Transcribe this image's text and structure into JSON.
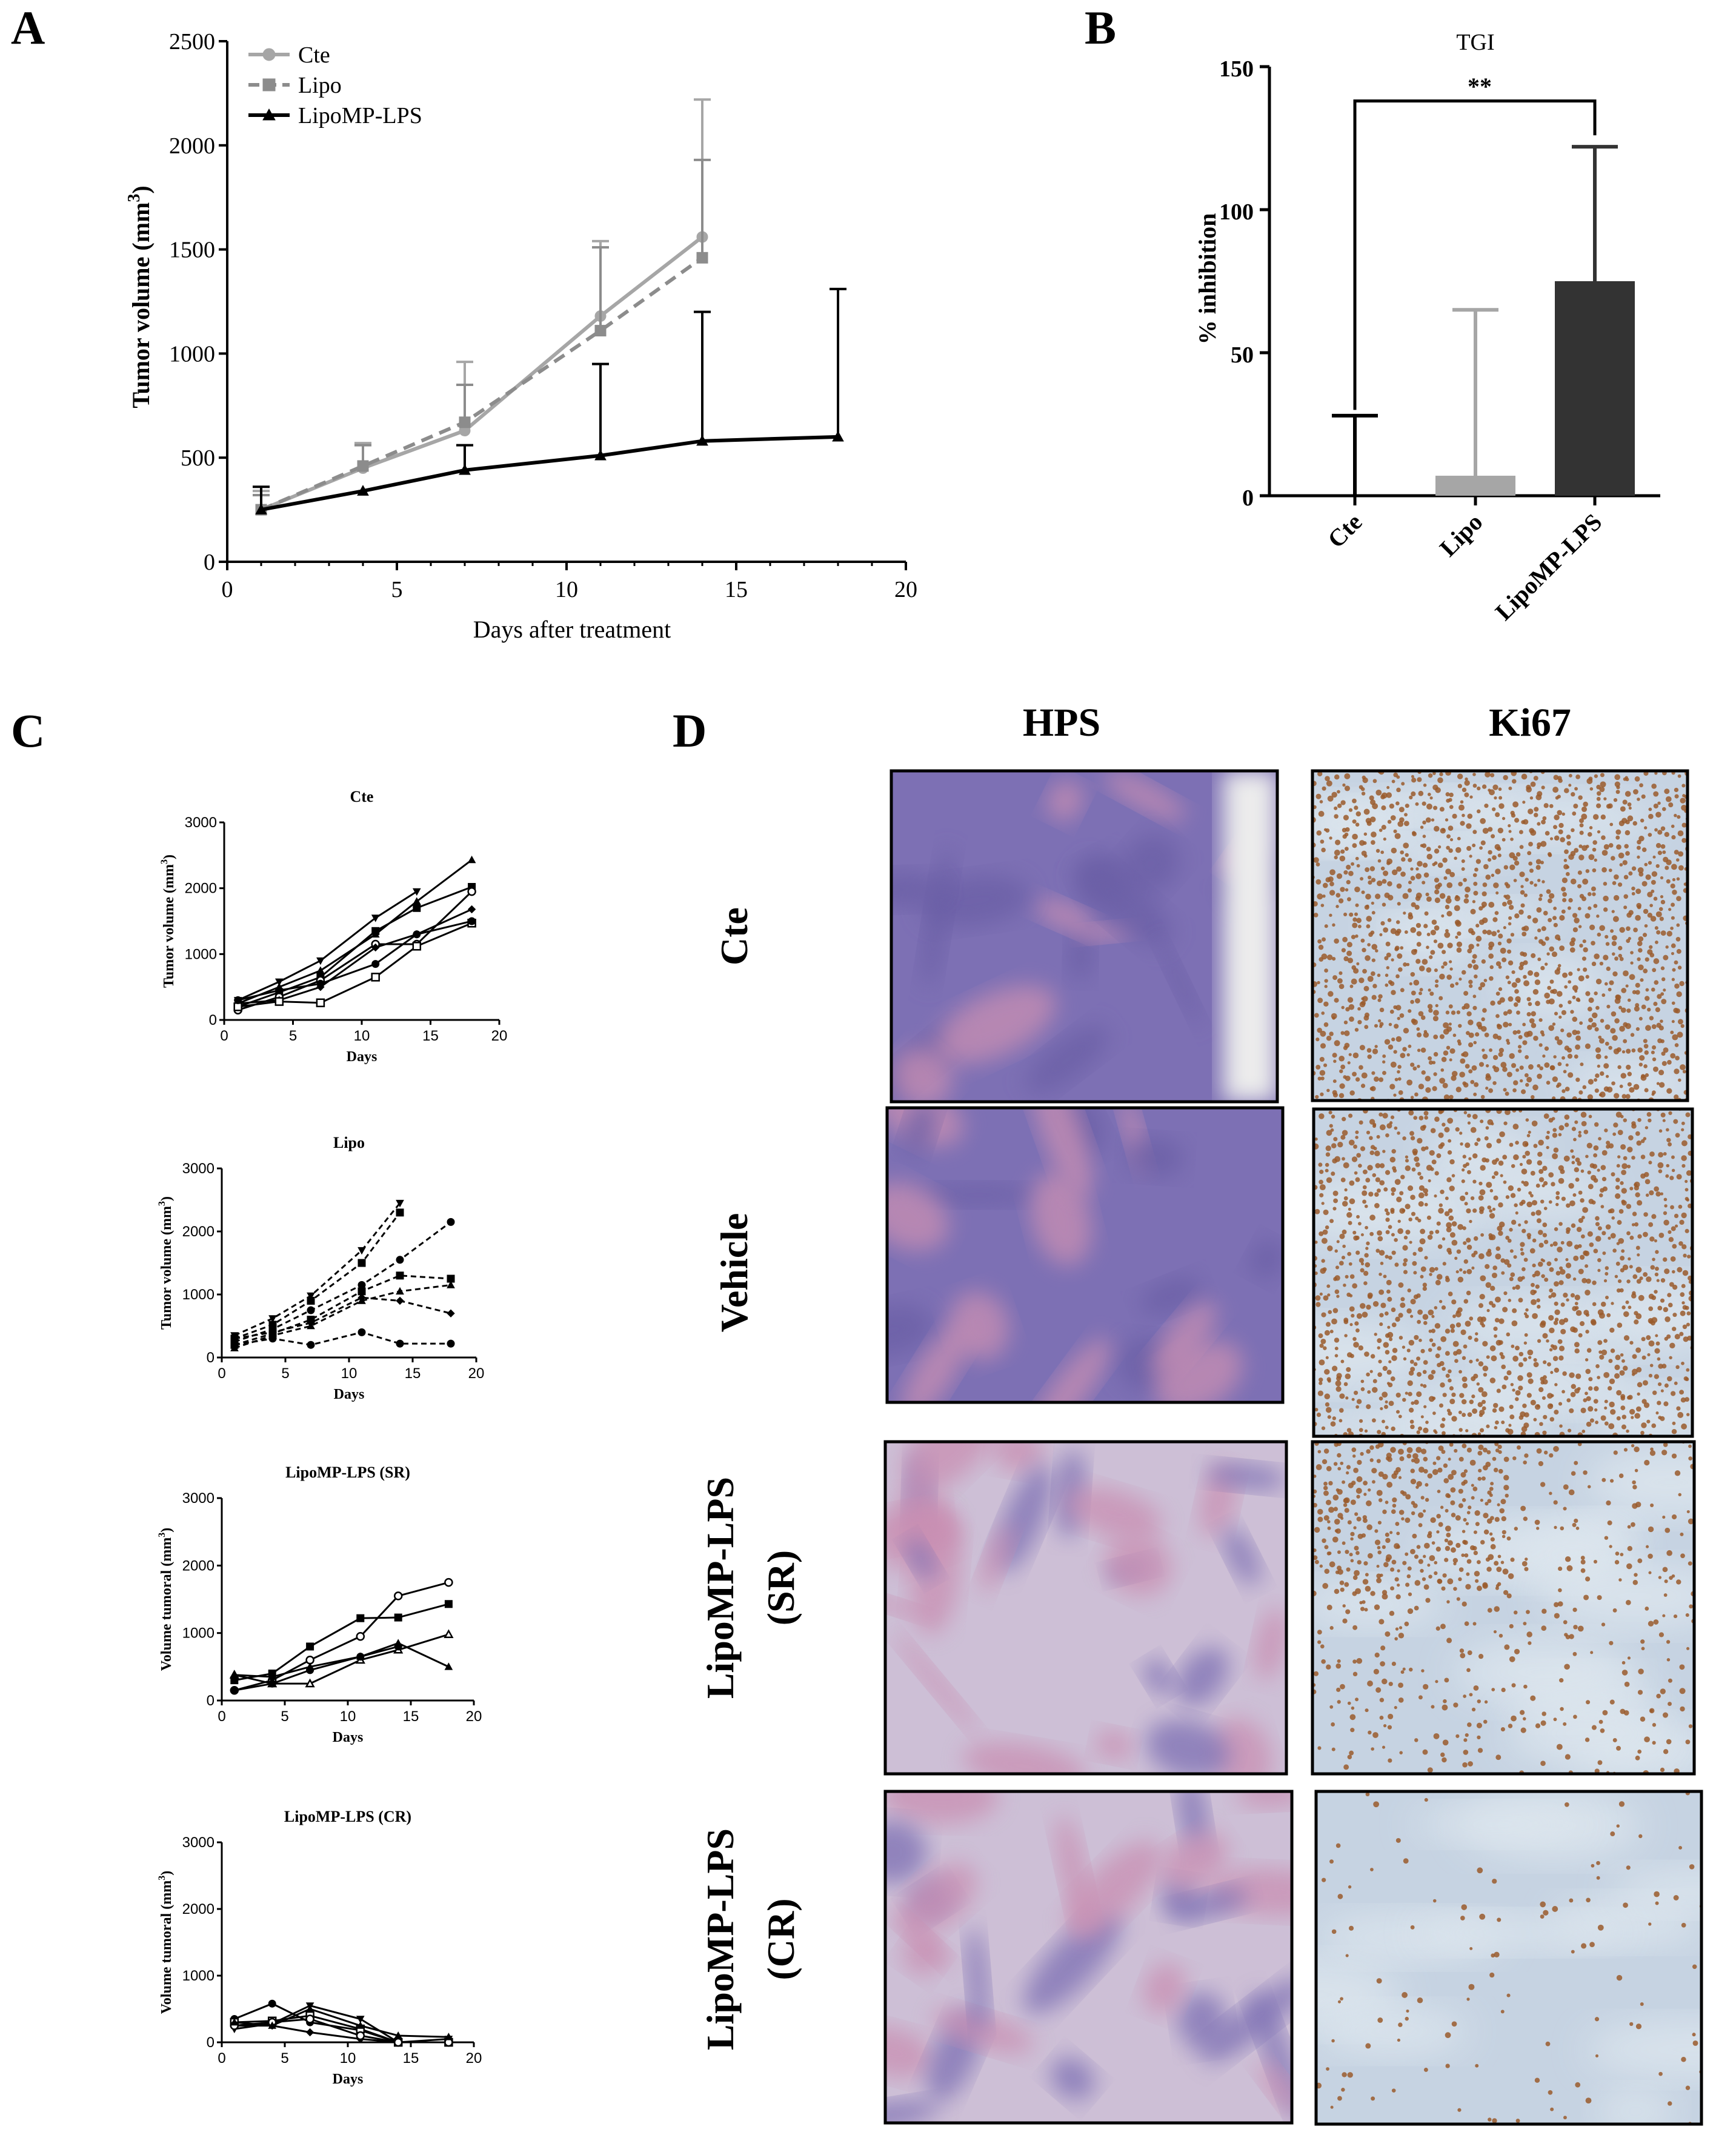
{
  "panels": {
    "A": "A",
    "B": "B",
    "C": "C",
    "D": "D"
  },
  "colors": {
    "cte": "#a6a6a6",
    "lipo": "#8c8c8c",
    "lipomp": "#000000",
    "bar_cte": "#000000",
    "bar_lipo": "#a6a6a6",
    "bar_lipomp": "#333333"
  },
  "chart_data": [
    {
      "id": "A",
      "type": "line",
      "xlabel": "Days after treatment",
      "ylabel": "Tumor volume (mm",
      "ylabel_sup": "3",
      "ylabel_close": ")",
      "xlim": [
        0,
        20
      ],
      "ylim": [
        0,
        2500
      ],
      "xticks": [
        "0",
        "5",
        "10",
        "15",
        "20"
      ],
      "yticks": [
        "0",
        "500",
        "1000",
        "1500",
        "2000",
        "2500"
      ],
      "legend_position": "top-left",
      "series": [
        {
          "name": "Cte",
          "marker": "circle",
          "dash": false,
          "x": [
            1,
            4,
            7,
            11,
            14
          ],
          "y": [
            250,
            450,
            630,
            1180,
            1560
          ],
          "err": [
            90,
            120,
            330,
            360,
            660
          ]
        },
        {
          "name": "Lipo",
          "marker": "square",
          "dash": true,
          "x": [
            1,
            4,
            7,
            11,
            14
          ],
          "y": [
            250,
            460,
            670,
            1110,
            1460
          ],
          "err": [
            70,
            100,
            180,
            400,
            470
          ]
        },
        {
          "name": "LipoMP-LPS",
          "marker": "triangle",
          "dash": false,
          "x": [
            1,
            4,
            7,
            11,
            14,
            18
          ],
          "y": [
            250,
            340,
            440,
            510,
            580,
            600
          ],
          "err": [
            110,
            0,
            120,
            440,
            620,
            710
          ]
        }
      ]
    },
    {
      "id": "B",
      "type": "bar",
      "title": "TGI",
      "ylabel": "%  inhibition",
      "ylim": [
        0,
        150
      ],
      "yticks": [
        "0",
        "50",
        "100",
        "150"
      ],
      "categories": [
        "Cte",
        "Lipo",
        "LipoMP-LPS"
      ],
      "values": [
        0,
        7,
        75
      ],
      "err": [
        28,
        58,
        47
      ],
      "annotation": "**"
    },
    {
      "id": "C1",
      "type": "line",
      "title": "Cte",
      "xlabel": "Days",
      "ylabel": "Tumor volume (mm",
      "ylabel_sup": "3",
      "ylabel_close": ")",
      "xlim": [
        0,
        20
      ],
      "ylim": [
        0,
        3000
      ],
      "xticks": [
        "0",
        "5",
        "10",
        "15",
        "20"
      ],
      "yticks": [
        "0",
        "1000",
        "2000",
        "3000"
      ],
      "dashed": false,
      "series": [
        {
          "marker": "triangle",
          "x": [
            1,
            4,
            7,
            11,
            14,
            18
          ],
          "y": [
            250,
            500,
            750,
            1300,
            1800,
            2430
          ]
        },
        {
          "marker": "square",
          "x": [
            1,
            4,
            7,
            11,
            14,
            18
          ],
          "y": [
            200,
            420,
            650,
            1350,
            1700,
            2020
          ]
        },
        {
          "marker": "tri-down",
          "x": [
            1,
            4,
            7,
            11,
            14
          ],
          "y": [
            300,
            580,
            900,
            1550,
            1950
          ]
        },
        {
          "marker": "circle-open",
          "x": [
            1,
            4,
            7,
            11,
            14,
            18
          ],
          "y": [
            150,
            350,
            600,
            1150,
            1150,
            1950
          ]
        },
        {
          "marker": "diamond",
          "x": [
            1,
            4,
            7,
            11,
            14,
            18
          ],
          "y": [
            250,
            300,
            500,
            1100,
            1300,
            1680
          ]
        },
        {
          "marker": "square-open",
          "x": [
            1,
            4,
            7,
            11,
            14,
            18
          ],
          "y": [
            200,
            280,
            260,
            650,
            1120,
            1470
          ]
        },
        {
          "marker": "circle",
          "x": [
            1,
            4,
            7,
            11,
            14,
            18
          ],
          "y": [
            300,
            450,
            550,
            850,
            1300,
            1500
          ]
        }
      ]
    },
    {
      "id": "C2",
      "type": "line",
      "title": "Lipo",
      "xlabel": "Days",
      "ylabel": "Tumor volume (mm",
      "ylabel_sup": "3",
      "ylabel_close": ")",
      "xlim": [
        0,
        20
      ],
      "ylim": [
        0,
        3000
      ],
      "xticks": [
        "0",
        "5",
        "10",
        "15",
        "20"
      ],
      "yticks": [
        "0",
        "1000",
        "2000",
        "3000"
      ],
      "dashed": true,
      "series": [
        {
          "marker": "tri-down",
          "x": [
            1,
            4,
            7,
            11,
            14
          ],
          "y": [
            350,
            620,
            980,
            1700,
            2450
          ]
        },
        {
          "marker": "square",
          "x": [
            1,
            4,
            7,
            11,
            14
          ],
          "y": [
            300,
            520,
            900,
            1500,
            2300
          ]
        },
        {
          "marker": "circle",
          "x": [
            1,
            4,
            7,
            11,
            14,
            18
          ],
          "y": [
            250,
            450,
            750,
            1150,
            1550,
            2150
          ]
        },
        {
          "marker": "square",
          "x": [
            1,
            4,
            7,
            11,
            14,
            18
          ],
          "y": [
            200,
            380,
            600,
            1050,
            1300,
            1250
          ]
        },
        {
          "marker": "triangle",
          "x": [
            1,
            4,
            7,
            11,
            14,
            18
          ],
          "y": [
            150,
            350,
            500,
            900,
            1050,
            1150
          ]
        },
        {
          "marker": "diamond",
          "x": [
            1,
            4,
            7,
            11,
            14,
            18
          ],
          "y": [
            300,
            400,
            550,
            950,
            900,
            700
          ]
        },
        {
          "marker": "circle",
          "x": [
            1,
            4,
            7,
            11,
            14,
            18
          ],
          "y": [
            200,
            300,
            200,
            400,
            220,
            220
          ]
        }
      ]
    },
    {
      "id": "C3",
      "type": "line",
      "title": "LipoMP-LPS (SR)",
      "xlabel": "Days",
      "ylabel": "Volume tumoral (mm",
      "ylabel_sup": "3",
      "ylabel_close": ")",
      "xlim": [
        0,
        20
      ],
      "ylim": [
        0,
        3000
      ],
      "xticks": [
        "0",
        "5",
        "10",
        "15",
        "20"
      ],
      "yticks": [
        "0",
        "1000",
        "2000",
        "3000"
      ],
      "dashed": false,
      "series": [
        {
          "marker": "circle-open",
          "x": [
            1,
            4,
            7,
            11,
            14,
            18
          ],
          "y": [
            150,
            300,
            600,
            950,
            1550,
            1750
          ]
        },
        {
          "marker": "square",
          "x": [
            1,
            4,
            7,
            11,
            14,
            18
          ],
          "y": [
            300,
            400,
            800,
            1220,
            1230,
            1430
          ]
        },
        {
          "marker": "triangle-open",
          "x": [
            1,
            4,
            7,
            11,
            14,
            18
          ],
          "y": [
            380,
            250,
            250,
            600,
            750,
            980
          ]
        },
        {
          "marker": "triangle",
          "x": [
            1,
            4,
            7,
            11,
            14,
            18
          ],
          "y": [
            380,
            350,
            500,
            650,
            850,
            500
          ]
        },
        {
          "marker": "circle",
          "x": [
            1,
            4,
            7,
            11,
            14
          ],
          "y": [
            150,
            250,
            450,
            650,
            800
          ]
        }
      ]
    },
    {
      "id": "C4",
      "type": "line",
      "title": "LipoMP-LPS (CR)",
      "xlabel": "Days",
      "ylabel": "Volume tumoral (mm",
      "ylabel_sup": "3",
      "ylabel_close": ")",
      "xlim": [
        0,
        20
      ],
      "ylim": [
        0,
        3000
      ],
      "xticks": [
        "0",
        "5",
        "10",
        "15",
        "20"
      ],
      "yticks": [
        "0",
        "1000",
        "2000",
        "3000"
      ],
      "dashed": false,
      "series": [
        {
          "marker": "circle",
          "x": [
            1,
            4,
            7,
            11,
            14,
            18
          ],
          "y": [
            350,
            580,
            300,
            180,
            0,
            0
          ]
        },
        {
          "marker": "tri-down",
          "x": [
            1,
            4,
            7,
            11,
            14,
            18
          ],
          "y": [
            200,
            280,
            550,
            350,
            0,
            50
          ]
        },
        {
          "marker": "square-open",
          "x": [
            1,
            4,
            7,
            11,
            14,
            18
          ],
          "y": [
            300,
            320,
            400,
            200,
            0,
            0
          ]
        },
        {
          "marker": "diamond",
          "x": [
            1,
            4,
            7,
            11,
            14,
            18
          ],
          "y": [
            250,
            250,
            150,
            50,
            0,
            0
          ]
        },
        {
          "marker": "circle-open",
          "x": [
            1,
            4,
            7,
            11,
            14,
            18
          ],
          "y": [
            250,
            300,
            350,
            100,
            0,
            0
          ]
        },
        {
          "marker": "triangle",
          "x": [
            1,
            4,
            7,
            11,
            14,
            18
          ],
          "y": [
            300,
            250,
            500,
            250,
            100,
            80
          ]
        }
      ]
    }
  ],
  "histology": {
    "columns": [
      "HPS",
      "Ki67"
    ],
    "rows": [
      {
        "lines": [
          "Cte"
        ]
      },
      {
        "lines": [
          "Vehicle"
        ]
      },
      {
        "lines": [
          "LipoMP-LPS",
          "(SR)"
        ]
      },
      {
        "lines": [
          "LipoMP-LPS",
          "(CR)"
        ]
      }
    ],
    "hps_colors": {
      "base": "#7d70b4",
      "stroma": "#c98fb2",
      "light": "#cdbfd6"
    },
    "ki67_colors": {
      "base": "#c6d3e2",
      "nuclei": "#9a5a2c",
      "stroma": "#dde6ee"
    },
    "ki67_density": [
      0.85,
      0.8,
      0.45,
      0.06
    ]
  }
}
